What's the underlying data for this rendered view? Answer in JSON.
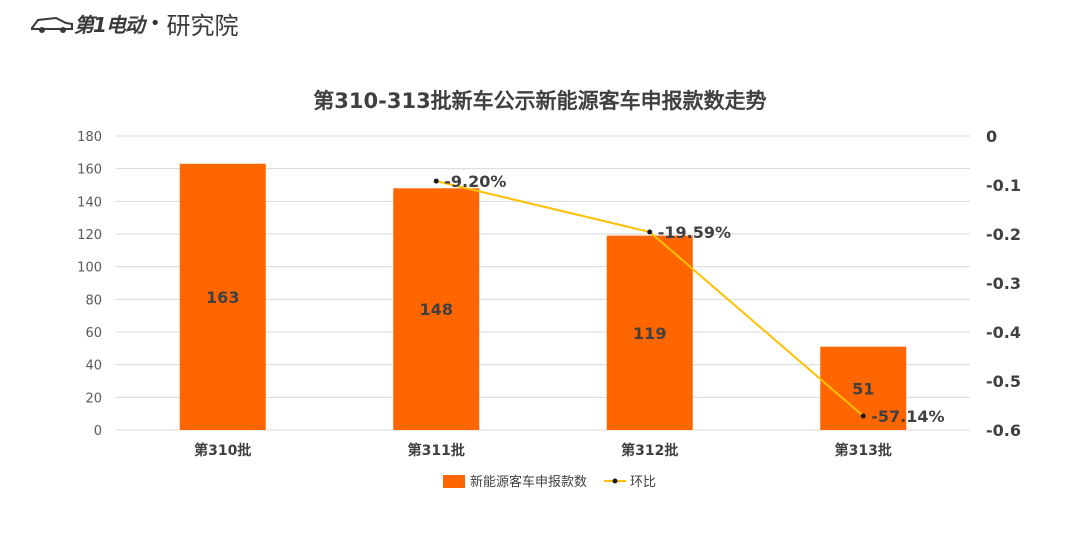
{
  "logo": {
    "brand": "第1电动",
    "separator": "•",
    "suffix": "研究院"
  },
  "chart_data": {
    "type": "bar",
    "title": "第310-313批新车公示新能源客车申报款数走势",
    "categories": [
      "第310批",
      "第311批",
      "第312批",
      "第313批"
    ],
    "series": [
      {
        "name": "新能源客车申报款数",
        "type": "bar",
        "axis": "left",
        "color": "#FF6600",
        "values": [
          163,
          148,
          119,
          51
        ],
        "data_labels": [
          "163",
          "148",
          "119",
          "51"
        ]
      },
      {
        "name": "环比",
        "type": "line",
        "axis": "right",
        "color": "#FFC000",
        "values": [
          null,
          -0.092,
          -0.1959,
          -0.5714
        ],
        "data_labels": [
          "",
          "-9.20%",
          "-19.59%",
          "-57.14%"
        ]
      }
    ],
    "y_left": {
      "min": 0,
      "max": 180,
      "ticks": [
        "0",
        "20",
        "40",
        "60",
        "80",
        "100",
        "120",
        "140",
        "160",
        "180"
      ]
    },
    "y_right": {
      "min": -0.6,
      "max": 0,
      "ticks": [
        "0",
        "-0.1",
        "-0.2",
        "-0.3",
        "-0.4",
        "-0.5",
        "-0.6"
      ]
    },
    "grid": true,
    "legend_position": "bottom"
  }
}
